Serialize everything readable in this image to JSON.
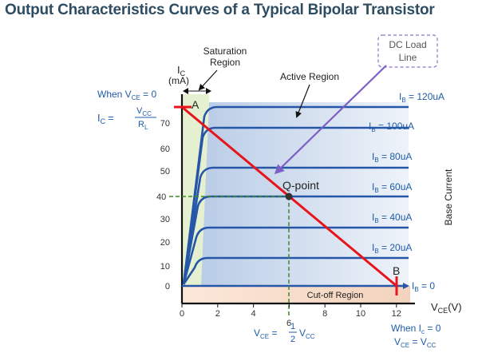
{
  "title": "Output Characteristics Curves of a Typical Bipolar Transistor",
  "axes": {
    "y_label_symbol": "I",
    "y_label_sub": "C",
    "y_unit": "(mA)",
    "x_label_symbol": "V",
    "x_label_sub": "CE",
    "x_unit": "(V)",
    "x_ticks": [
      "0",
      "2",
      "4",
      "6",
      "8",
      "10",
      "12"
    ],
    "y_ticks": [
      "0",
      "10",
      "20",
      "30",
      "40",
      "50",
      "60",
      "70"
    ]
  },
  "regions": {
    "saturation_line1": "Saturation",
    "saturation_line2": "Region",
    "active": "Active Region",
    "cutoff": "Cut-off Region",
    "dc_load_line1": "DC Load",
    "dc_load_line2": "Line",
    "base_current": "Base Current"
  },
  "points": {
    "a": "A",
    "b": "B",
    "q": "Q-point"
  },
  "annotations": {
    "when_vce_zero": {
      "pre": "When V",
      "sub": "CE",
      "post": " = 0"
    },
    "ic_eq": {
      "lhs": "I",
      "lhs_sub": "C",
      "eq": "=",
      "num": "V",
      "num_sub": "CC",
      "den": "R",
      "den_sub": "L"
    },
    "vce_half": {
      "lhs": "V",
      "lhs_sub": "CE",
      "eq": " = ",
      "num": "1",
      "den": "2",
      "rhs": "V",
      "rhs_sub": "CC"
    },
    "when_ic_zero": {
      "pre": "When I",
      "sub": "c",
      "post": " = 0"
    },
    "vce_vcc": {
      "lhs": "V",
      "lhs_sub": "CE",
      "eq": " = V",
      "rhs_sub": "CC"
    },
    "q_current": "40",
    "q_voltage": "6"
  },
  "curves": [
    {
      "label": "I",
      "sub": "B",
      "value": " = 120uA"
    },
    {
      "label": "I",
      "sub": "B",
      "value": " = 100uA"
    },
    {
      "label": "I",
      "sub": "B",
      "value": " = 80uA"
    },
    {
      "label": "I",
      "sub": "B",
      "value": " = 60uA"
    },
    {
      "label": "I",
      "sub": "B",
      "value": " = 40uA"
    },
    {
      "label": "I",
      "sub": "B",
      "value": " = 20uA"
    },
    {
      "label": "I",
      "sub": "B",
      "value": " = 0"
    }
  ],
  "colors": {
    "curve": "#2656a8",
    "load_line": "#e8141c",
    "saturation_fill": "#e3f0cf",
    "active_fill": "#cfdcee",
    "cutoff_fill": "#f6dcc8",
    "label_blue": "#1f5ca8"
  }
}
